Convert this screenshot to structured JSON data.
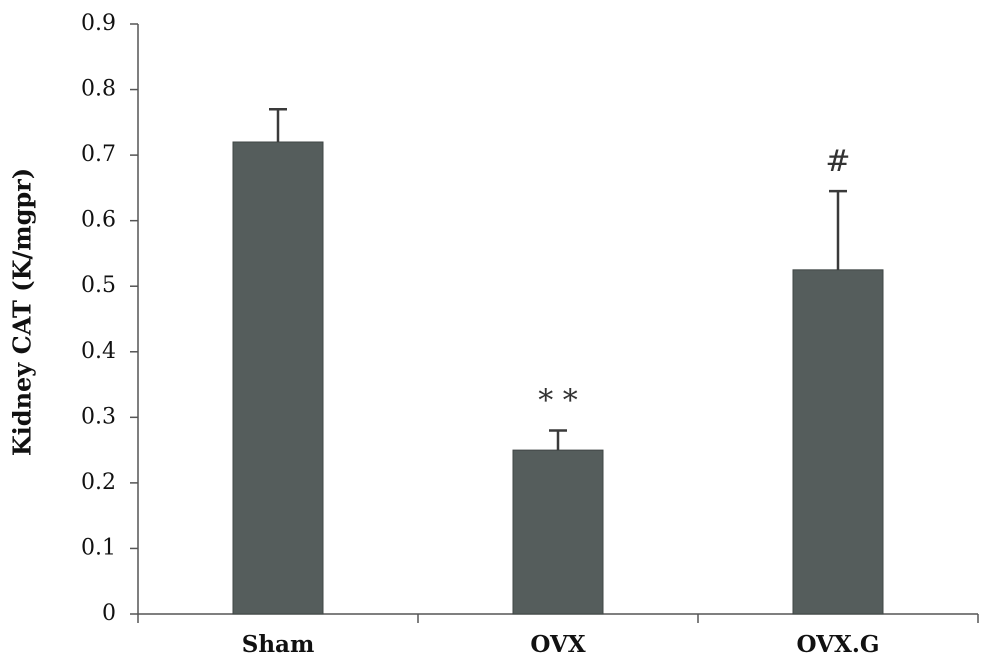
{
  "chart_data": {
    "type": "bar",
    "title": "",
    "xlabel": "",
    "ylabel": "Kidney CAT (K/mgpr)",
    "categories": [
      "Sham",
      "OVX",
      "OVX.G"
    ],
    "values": [
      0.72,
      0.25,
      0.525
    ],
    "errors": [
      0.05,
      0.03,
      0.12
    ],
    "annotations": [
      "",
      "* *",
      "#"
    ],
    "yticks": [
      "0",
      "0.1",
      "0.2",
      "0.3",
      "0.4",
      "0.5",
      "0.6",
      "0.7",
      "0.8",
      "0.9"
    ],
    "ylim": [
      0,
      0.9
    ],
    "grid": false,
    "bar_color": "#555d5c",
    "axis_color": "#555555"
  }
}
